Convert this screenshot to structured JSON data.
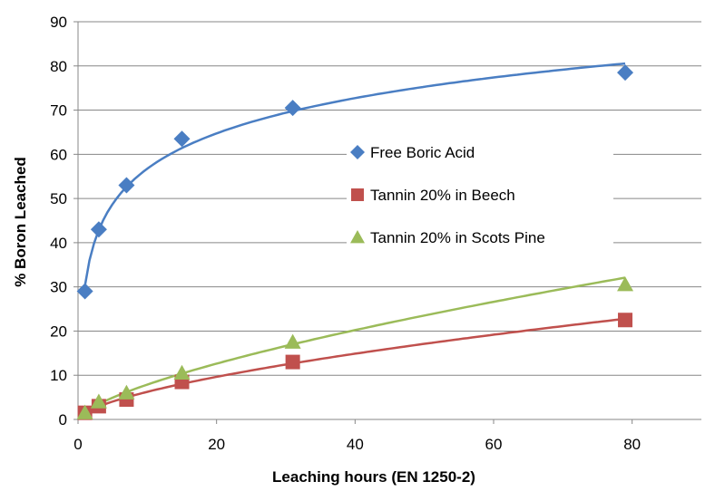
{
  "chart_data": {
    "type": "scatter",
    "xlabel": "Leaching hours (EN 1250-2)",
    "ylabel": "% Boron Leached",
    "xlim": [
      0,
      90
    ],
    "ylim": [
      0,
      90
    ],
    "xticks": [
      0,
      20,
      40,
      60,
      80
    ],
    "yticks": [
      0,
      10,
      20,
      30,
      40,
      50,
      60,
      70,
      80,
      90
    ],
    "grid": "horizontal",
    "legend_position": "center-right",
    "series": [
      {
        "name": "Free Boric Acid",
        "marker": "diamond",
        "color": "#4A7EC3",
        "x": [
          1,
          3,
          7,
          15,
          31,
          79
        ],
        "y": [
          29,
          43,
          53,
          63.5,
          70.5,
          78.5
        ],
        "trendline": "logarithmic"
      },
      {
        "name": "Tannin 20% in Beech",
        "marker": "square",
        "color": "#C0504D",
        "x": [
          1,
          3,
          7,
          15,
          31,
          79
        ],
        "y": [
          1.5,
          3,
          4.5,
          8.5,
          13,
          22.5
        ],
        "trendline": "power"
      },
      {
        "name": "Tannin 20% in Scots Pine",
        "marker": "triangle",
        "color": "#9BBB59",
        "x": [
          1,
          3,
          7,
          15,
          31,
          79
        ],
        "y": [
          1.5,
          4,
          6,
          10.5,
          17.5,
          30.5
        ],
        "trendline": "power"
      }
    ]
  }
}
